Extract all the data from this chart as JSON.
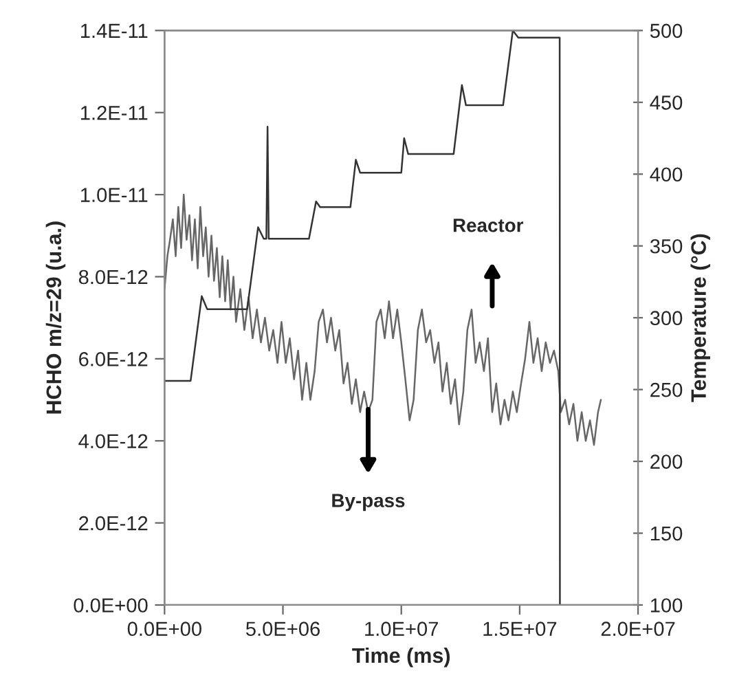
{
  "chart_data": {
    "type": "line",
    "xlabel": "Time (ms)",
    "ylabel": "HCHO m/z=29 (u.a.)",
    "y2label": "Temperature (°C)",
    "xlim": [
      0,
      20000000
    ],
    "xticks": [
      {
        "value": 0,
        "label": "0.0E+00"
      },
      {
        "value": 5000000,
        "label": "5.0E+06"
      },
      {
        "value": 10000000,
        "label": "1.0E+07"
      },
      {
        "value": 15000000,
        "label": "1.5E+07"
      },
      {
        "value": 20000000,
        "label": "2.0E+07"
      }
    ],
    "ylim": [
      0,
      1.4e-11
    ],
    "yticks": [
      {
        "value": 0,
        "label": "0.0E+00"
      },
      {
        "value": 2e-12,
        "label": "2.0E-12"
      },
      {
        "value": 4e-12,
        "label": "4.0E-12"
      },
      {
        "value": 6e-12,
        "label": "6.0E-12"
      },
      {
        "value": 8e-12,
        "label": "8.0E-12"
      },
      {
        "value": 1e-11,
        "label": "1.0E-11"
      },
      {
        "value": 1.2e-11,
        "label": "1.2E-11"
      },
      {
        "value": 1.4e-11,
        "label": "1.4E-11"
      }
    ],
    "y2lim": [
      100,
      500
    ],
    "y2ticks": [
      100,
      150,
      200,
      250,
      300,
      350,
      400,
      450,
      500
    ],
    "grid": false,
    "marker": "none",
    "line_style": "solid",
    "annotations": [
      "Reactor",
      "By-pass"
    ],
    "series": [
      {
        "color": "#666666",
        "x": [
          0,
          120000,
          230000,
          350000,
          470000,
          580000,
          700000,
          810000,
          930000,
          1050000,
          1160000,
          1280000,
          1400000,
          1510000,
          1630000,
          1740000,
          1860000,
          1980000,
          2090000,
          2210000,
          2330000,
          2440000,
          2560000,
          2670000,
          2790000,
          2910000,
          3020000,
          3200000,
          3370000,
          3550000,
          3720000,
          3900000,
          4070000,
          4240000,
          4420000,
          4590000,
          4770000,
          4940000,
          5120000,
          5290000,
          5470000,
          5640000,
          5810000,
          5990000,
          6160000,
          6340000,
          6510000,
          6690000,
          6860000,
          7030000,
          7210000,
          7380000,
          7560000,
          7730000,
          7910000,
          8080000,
          8260000,
          8430000,
          8600000,
          8780000,
          8950000,
          9130000,
          9300000,
          9480000,
          9650000,
          9830000,
          10000000,
          10170000,
          10350000,
          10520000,
          10700000,
          10870000,
          11050000,
          11220000,
          11400000,
          11570000,
          11740000,
          11920000,
          12090000,
          12270000,
          12440000,
          12620000,
          12790000,
          12970000,
          13140000,
          13310000,
          13490000,
          13660000,
          13840000,
          14010000,
          14190000,
          14360000,
          14530000,
          14710000,
          14880000,
          15060000,
          15230000,
          15410000,
          15580000,
          15760000,
          15930000,
          16100000,
          16280000,
          16450000,
          16630000,
          16740000,
          16920000,
          17090000,
          17270000,
          17440000,
          17620000,
          17790000,
          17970000,
          18140000,
          18310000,
          18430000
        ],
        "values": [
          7.7e-12,
          8.5e-12,
          8.9e-12,
          9.4e-12,
          8.5e-12,
          9.7e-12,
          8.7e-12,
          1e-11,
          8.9e-12,
          9.5e-12,
          8.4e-12,
          9.4e-12,
          8.2e-12,
          9.7e-12,
          8.5e-12,
          9.2e-12,
          8e-12,
          9e-12,
          7.9e-12,
          8.7e-12,
          7.5e-12,
          8.5e-12,
          7.4e-12,
          8.4e-12,
          7.2e-12,
          8e-12,
          6.9e-12,
          7.7e-12,
          6.7e-12,
          7.5e-12,
          6.5e-12,
          7.2e-12,
          6.4e-12,
          7e-12,
          6.2e-12,
          6.7e-12,
          5.9e-12,
          6.9e-12,
          5.9e-12,
          6.5e-12,
          5.5e-12,
          6.2e-12,
          5e-12,
          5.9e-12,
          5e-12,
          5.7e-12,
          6.9e-12,
          7.2e-12,
          6.4e-12,
          7e-12,
          6.2e-12,
          6.7e-12,
          5.4e-12,
          5.9e-12,
          4.9e-12,
          5.5e-12,
          4.7e-12,
          5.2e-12,
          4.7e-12,
          5e-12,
          6.9e-12,
          7.2e-12,
          6.5e-12,
          7.4e-12,
          6.5e-12,
          7.2e-12,
          6.4e-12,
          5.5e-12,
          4.5e-12,
          5e-12,
          6.7e-12,
          7.2e-12,
          6.4e-12,
          6.7e-12,
          5.9e-12,
          6.4e-12,
          5.2e-12,
          5.9e-12,
          4.9e-12,
          5.5e-12,
          4.4e-12,
          5.2e-12,
          6.7e-12,
          7.2e-12,
          5.9e-12,
          6.4e-12,
          5.7e-12,
          6.5e-12,
          4.7e-12,
          5.4e-12,
          4.4e-12,
          5e-12,
          4.5e-12,
          5.2e-12,
          4.7e-12,
          5.4e-12,
          6e-12,
          6.9e-12,
          5.9e-12,
          6.5e-12,
          5.7e-12,
          6.4e-12,
          5.9e-12,
          6.2e-12,
          5.7e-12,
          4.7e-12,
          5e-12,
          4.4e-12,
          4.9e-12,
          4e-12,
          4.7e-12,
          4e-12,
          4.5e-12,
          3.9e-12,
          4.7e-12,
          5e-12
        ]
      },
      {
        "color": "#333333",
        "axis": "y2",
        "x": [
          0,
          1100000,
          1570000,
          1800000,
          3490000,
          3950000,
          4190000,
          4300000,
          4350000,
          4400000,
          6100000,
          6400000,
          6570000,
          7850000,
          8080000,
          8260000,
          10000000,
          10120000,
          10290000,
          12210000,
          12560000,
          12730000,
          14300000,
          14710000,
          14940000,
          16690000,
          16700000
        ],
        "values": [
          256,
          256,
          315,
          306,
          306,
          363,
          355,
          355,
          433,
          355,
          355,
          381,
          377,
          377,
          410,
          401,
          401,
          425,
          414,
          414,
          462,
          448,
          448,
          500,
          495,
          495,
          100
        ]
      }
    ]
  }
}
